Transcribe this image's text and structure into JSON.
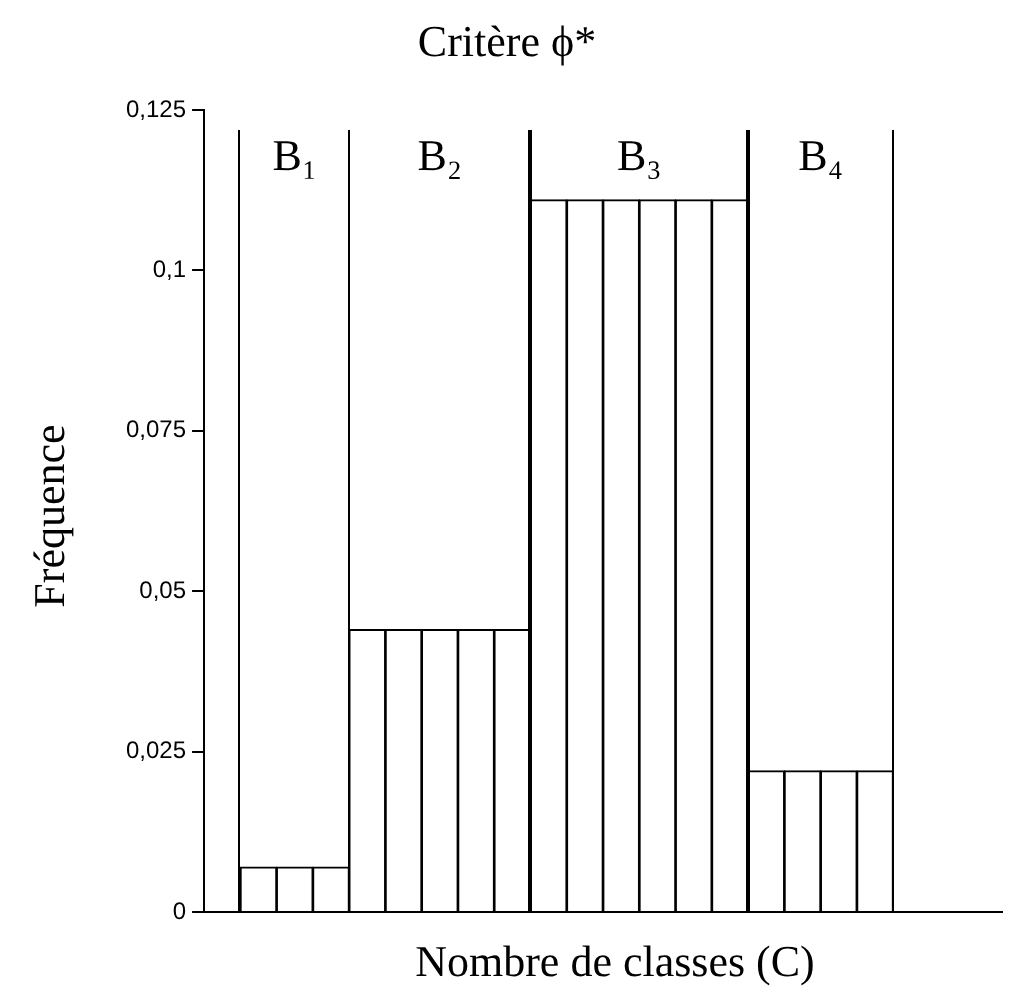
{
  "chart_data": {
    "type": "bar",
    "title": "Critère ϕ*",
    "xlabel": "Nombre de classes (C)",
    "ylabel": "Fréquence",
    "categories": [
      null,
      null,
      null,
      null,
      null,
      null,
      null,
      null,
      null,
      null,
      null,
      null,
      null,
      null,
      null,
      null,
      null,
      null,
      null,
      null,
      null,
      null
    ],
    "annotations": [
      "B₁",
      "B₂",
      "B₃",
      "B₄"
    ],
    "series": [
      {
        "color": "#ffffff",
        "values": [
          null,
          0.007,
          0.007,
          0.007,
          null,
          null,
          null,
          null,
          null,
          null,
          null,
          null,
          null,
          null,
          null,
          null,
          null,
          null,
          null,
          null,
          null,
          null
        ]
      },
      {
        "color": "#ffffff",
        "values": [
          null,
          null,
          null,
          null,
          0.044,
          0.044,
          0.044,
          0.044,
          0.044,
          null,
          null,
          null,
          null,
          null,
          null,
          null,
          null,
          null,
          null,
          null,
          null,
          null
        ]
      },
      {
        "color": "#ffffff",
        "values": [
          null,
          null,
          null,
          null,
          null,
          null,
          null,
          null,
          null,
          0.111,
          0.111,
          0.111,
          0.111,
          0.111,
          0.111,
          null,
          null,
          null,
          null,
          null,
          null,
          null
        ]
      },
      {
        "color": "#ffffff",
        "values": [
          null,
          null,
          null,
          null,
          null,
          null,
          null,
          null,
          null,
          null,
          null,
          null,
          null,
          null,
          null,
          0.022,
          0.022,
          0.022,
          0.022,
          null,
          null,
          null
        ]
      }
    ],
    "ylim": [
      0,
      0.125
    ],
    "yticks": [
      {
        "value": 0,
        "label": "0"
      },
      {
        "value": 0.025,
        "label": "0,025"
      },
      {
        "value": 0.05,
        "label": "0,05"
      },
      {
        "value": 0.075,
        "label": "0,075"
      },
      {
        "value": 0.1,
        "label": "0,1"
      },
      {
        "value": 0.125,
        "label": "0,125"
      }
    ],
    "tick_labels": "y",
    "grid": false,
    "legend": false
  }
}
